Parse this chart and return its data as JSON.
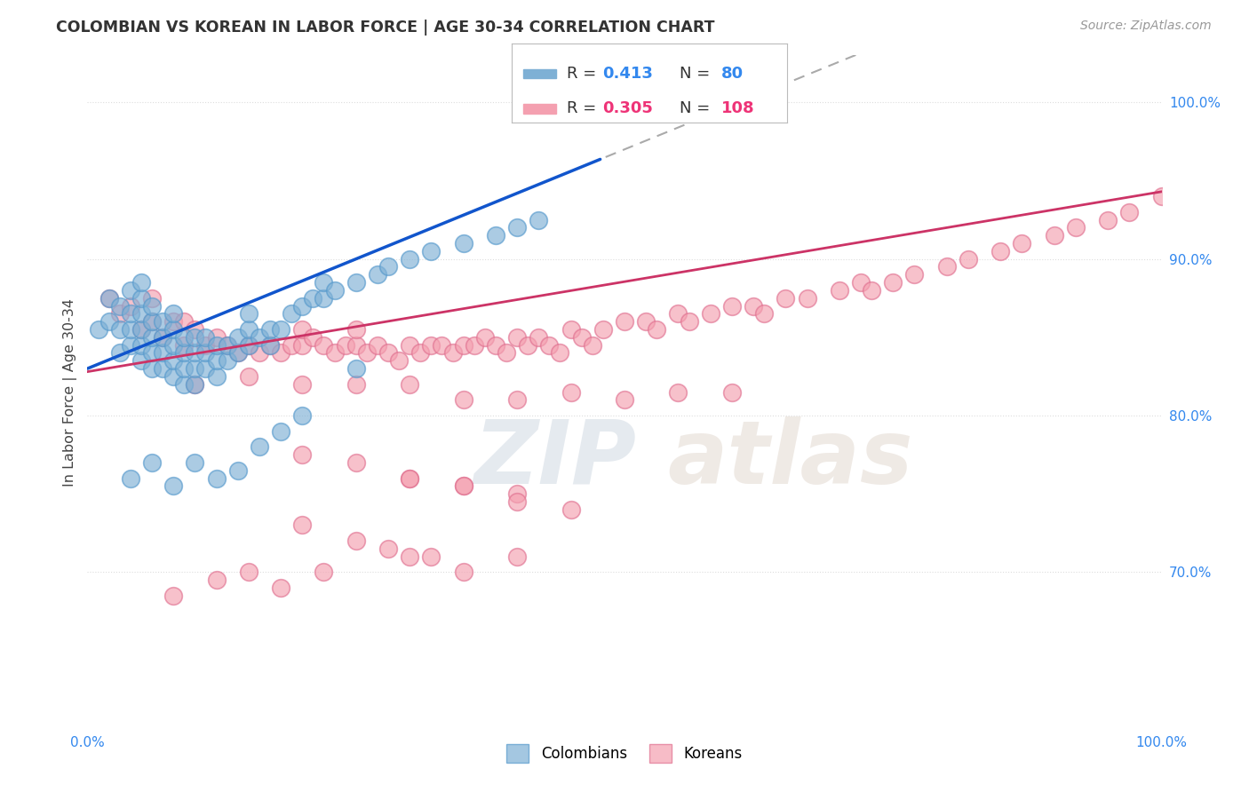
{
  "title": "COLOMBIAN VS KOREAN IN LABOR FORCE | AGE 30-34 CORRELATION CHART",
  "source": "Source: ZipAtlas.com",
  "ylabel": "In Labor Force | Age 30-34",
  "xlim": [
    0.0,
    1.0
  ],
  "ylim": [
    0.6,
    1.03
  ],
  "colombian_color": "#7EB0D5",
  "colombian_edge": "#5599CC",
  "korean_color": "#F4A0B0",
  "korean_edge": "#E07090",
  "colombian_R": 0.413,
  "colombian_N": 80,
  "korean_R": 0.305,
  "korean_N": 108,
  "background_color": "#FFFFFF",
  "grid_color": "#DDDDDD",
  "yticks": [
    0.7,
    0.8,
    0.9,
    1.0
  ],
  "ytick_labels": [
    "70.0%",
    "80.0%",
    "90.0%",
    "100.0%"
  ],
  "col_line_color": "#1155CC",
  "kor_line_color": "#CC3366",
  "dash_color": "#AAAAAA",
  "wm_zip_color": "#BBCCDD",
  "wm_atlas_color": "#DDBBAA",
  "col_scatter_x": [
    0.01,
    0.02,
    0.02,
    0.03,
    0.03,
    0.03,
    0.04,
    0.04,
    0.04,
    0.04,
    0.05,
    0.05,
    0.05,
    0.05,
    0.05,
    0.05,
    0.06,
    0.06,
    0.06,
    0.06,
    0.06,
    0.07,
    0.07,
    0.07,
    0.07,
    0.08,
    0.08,
    0.08,
    0.08,
    0.08,
    0.09,
    0.09,
    0.09,
    0.09,
    0.1,
    0.1,
    0.1,
    0.1,
    0.11,
    0.11,
    0.11,
    0.12,
    0.12,
    0.12,
    0.13,
    0.13,
    0.14,
    0.14,
    0.15,
    0.15,
    0.15,
    0.16,
    0.17,
    0.17,
    0.18,
    0.19,
    0.2,
    0.21,
    0.22,
    0.22,
    0.23,
    0.25,
    0.27,
    0.28,
    0.3,
    0.32,
    0.35,
    0.38,
    0.4,
    0.42,
    0.04,
    0.06,
    0.08,
    0.1,
    0.12,
    0.14,
    0.16,
    0.18,
    0.2,
    0.25
  ],
  "col_scatter_y": [
    0.855,
    0.86,
    0.875,
    0.84,
    0.855,
    0.87,
    0.845,
    0.855,
    0.865,
    0.88,
    0.835,
    0.845,
    0.855,
    0.865,
    0.875,
    0.885,
    0.83,
    0.84,
    0.85,
    0.86,
    0.87,
    0.83,
    0.84,
    0.85,
    0.86,
    0.825,
    0.835,
    0.845,
    0.855,
    0.865,
    0.82,
    0.83,
    0.84,
    0.85,
    0.82,
    0.83,
    0.84,
    0.85,
    0.83,
    0.84,
    0.85,
    0.825,
    0.835,
    0.845,
    0.835,
    0.845,
    0.84,
    0.85,
    0.845,
    0.855,
    0.865,
    0.85,
    0.845,
    0.855,
    0.855,
    0.865,
    0.87,
    0.875,
    0.875,
    0.885,
    0.88,
    0.885,
    0.89,
    0.895,
    0.9,
    0.905,
    0.91,
    0.915,
    0.92,
    0.925,
    0.76,
    0.77,
    0.755,
    0.77,
    0.76,
    0.765,
    0.78,
    0.79,
    0.8,
    0.83
  ],
  "kor_scatter_x": [
    0.02,
    0.03,
    0.04,
    0.05,
    0.06,
    0.06,
    0.07,
    0.08,
    0.09,
    0.09,
    0.1,
    0.11,
    0.12,
    0.13,
    0.14,
    0.15,
    0.16,
    0.17,
    0.18,
    0.19,
    0.2,
    0.2,
    0.21,
    0.22,
    0.23,
    0.24,
    0.25,
    0.25,
    0.26,
    0.27,
    0.28,
    0.29,
    0.3,
    0.31,
    0.32,
    0.33,
    0.34,
    0.35,
    0.36,
    0.37,
    0.38,
    0.39,
    0.4,
    0.41,
    0.42,
    0.43,
    0.44,
    0.45,
    0.46,
    0.47,
    0.48,
    0.5,
    0.52,
    0.53,
    0.55,
    0.56,
    0.58,
    0.6,
    0.62,
    0.63,
    0.65,
    0.67,
    0.7,
    0.72,
    0.73,
    0.75,
    0.77,
    0.8,
    0.82,
    0.85,
    0.87,
    0.9,
    0.92,
    0.95,
    0.97,
    1.0,
    0.1,
    0.15,
    0.2,
    0.25,
    0.3,
    0.35,
    0.4,
    0.45,
    0.5,
    0.55,
    0.6,
    0.3,
    0.35,
    0.4,
    0.2,
    0.25,
    0.3,
    0.35,
    0.4,
    0.45,
    0.4,
    0.35,
    0.28,
    0.32,
    0.22,
    0.18,
    0.15,
    0.12,
    0.08,
    0.25,
    0.3,
    0.2
  ],
  "kor_scatter_y": [
    0.875,
    0.865,
    0.87,
    0.855,
    0.86,
    0.875,
    0.85,
    0.86,
    0.845,
    0.86,
    0.855,
    0.845,
    0.85,
    0.845,
    0.84,
    0.845,
    0.84,
    0.845,
    0.84,
    0.845,
    0.845,
    0.855,
    0.85,
    0.845,
    0.84,
    0.845,
    0.845,
    0.855,
    0.84,
    0.845,
    0.84,
    0.835,
    0.845,
    0.84,
    0.845,
    0.845,
    0.84,
    0.845,
    0.845,
    0.85,
    0.845,
    0.84,
    0.85,
    0.845,
    0.85,
    0.845,
    0.84,
    0.855,
    0.85,
    0.845,
    0.855,
    0.86,
    0.86,
    0.855,
    0.865,
    0.86,
    0.865,
    0.87,
    0.87,
    0.865,
    0.875,
    0.875,
    0.88,
    0.885,
    0.88,
    0.885,
    0.89,
    0.895,
    0.9,
    0.905,
    0.91,
    0.915,
    0.92,
    0.925,
    0.93,
    0.94,
    0.82,
    0.825,
    0.82,
    0.82,
    0.82,
    0.81,
    0.81,
    0.815,
    0.81,
    0.815,
    0.815,
    0.76,
    0.755,
    0.75,
    0.775,
    0.77,
    0.76,
    0.755,
    0.745,
    0.74,
    0.71,
    0.7,
    0.715,
    0.71,
    0.7,
    0.69,
    0.7,
    0.695,
    0.685,
    0.72,
    0.71,
    0.73
  ]
}
